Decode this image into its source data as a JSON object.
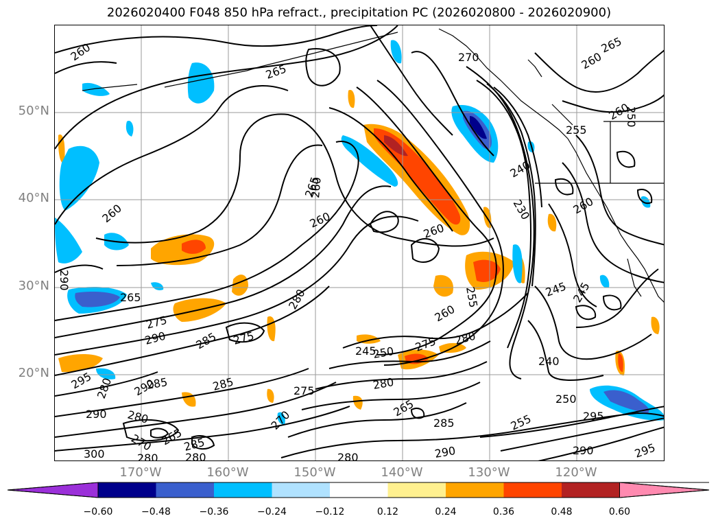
{
  "title": "2026020400 F048 850 hPa refract., precipitation PC (2026020800 - 2026020900)",
  "lat_labels": [
    "50°N",
    "40°N",
    "30°N",
    "20°N"
  ],
  "lon_labels": [
    "170°W",
    "160°W",
    "150°W",
    "140°W",
    "130°W",
    "120°W"
  ],
  "colorbar": {
    "colors": [
      "#9b30d9",
      "#00008b",
      "#3a5fcd",
      "#00bfff",
      "#b0e2ff",
      "#ffffff",
      "#fff08f",
      "#ffa500",
      "#ff4500",
      "#b22222",
      "#ff8ab0"
    ],
    "ticks": [
      "−0.60",
      "−0.48",
      "−0.36",
      "−0.24",
      "−0.12",
      "0.12",
      "0.24",
      "0.36",
      "0.48",
      "0.60"
    ]
  },
  "contour_labels": [
    "260",
    "265",
    "270",
    "260",
    "265",
    "250",
    "260",
    "255",
    "260",
    "240",
    "265",
    "260",
    "260",
    "230",
    "260",
    "260",
    "290",
    "265",
    "275",
    "290",
    "285",
    "275",
    "280",
    "260",
    "245",
    "245",
    "255",
    "280",
    "245",
    "250",
    "275",
    "240",
    "295",
    "285",
    "280",
    "290",
    "285",
    "275",
    "280",
    "290",
    "270",
    "265",
    "285",
    "280",
    "290",
    "250",
    "295",
    "280",
    "265",
    "285",
    "270",
    "280",
    "255",
    "290",
    "295",
    "300",
    "280"
  ]
}
